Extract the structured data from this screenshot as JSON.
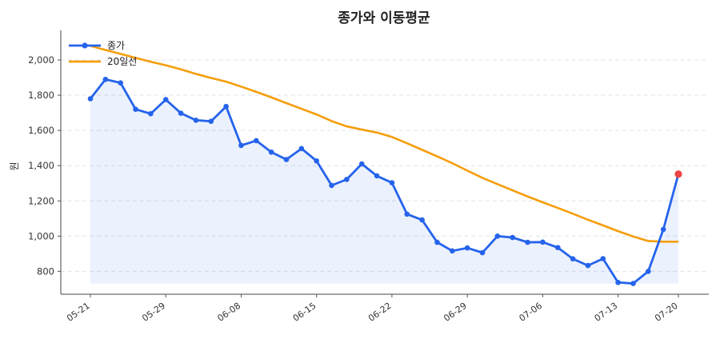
{
  "chart_data": {
    "type": "line",
    "title": "종가와 이동평균",
    "xlabel": "",
    "ylabel": "원",
    "ylim": [
      670,
      2150
    ],
    "y_ticks": [
      800,
      1000,
      1200,
      1400,
      1600,
      1800,
      2000
    ],
    "y_tick_labels": [
      "800",
      "1,000",
      "1,200",
      "1,400",
      "1,600",
      "1,800",
      "2,000"
    ],
    "x_tick_labels": [
      {
        "index": 0,
        "label": "05-21"
      },
      {
        "index": 5,
        "label": "05-29"
      },
      {
        "index": 10,
        "label": "06-08"
      },
      {
        "index": 15,
        "label": "06-15"
      },
      {
        "index": 20,
        "label": "06-22"
      },
      {
        "index": 25,
        "label": "06-29"
      },
      {
        "index": 30,
        "label": "07-06"
      },
      {
        "index": 35,
        "label": "07-13"
      },
      {
        "index": 39,
        "label": "07-20"
      }
    ],
    "grid": true,
    "legend_position": "top-left",
    "series": [
      {
        "name": "종가",
        "color": "#2563eb",
        "fill": true,
        "values": [
          1780,
          1890,
          1870,
          1720,
          1695,
          1775,
          1698,
          1658,
          1652,
          1736,
          1515,
          1542,
          1477,
          1435,
          1497,
          1427,
          1288,
          1322,
          1410,
          1342,
          1303,
          1125,
          1092,
          965,
          916,
          933,
          906,
          1000,
          992,
          965,
          966,
          935,
          871,
          833,
          872,
          737,
          731,
          800,
          1038,
          1352
        ]
      },
      {
        "name": "20일선",
        "color": "#f59e0b",
        "fill": false,
        "values": [
          2080,
          2057,
          2035,
          2012,
          1990,
          1970,
          1947,
          1921,
          1898,
          1877,
          1849,
          1819,
          1788,
          1755,
          1723,
          1691,
          1653,
          1623,
          1605,
          1588,
          1563,
          1527,
          1490,
          1453,
          1414,
          1372,
          1331,
          1295,
          1260,
          1225,
          1192,
          1160,
          1127,
          1093,
          1061,
          1028,
          998,
          972,
          968,
          968
        ]
      }
    ],
    "highlight_last_point_color": "#ef4444"
  }
}
